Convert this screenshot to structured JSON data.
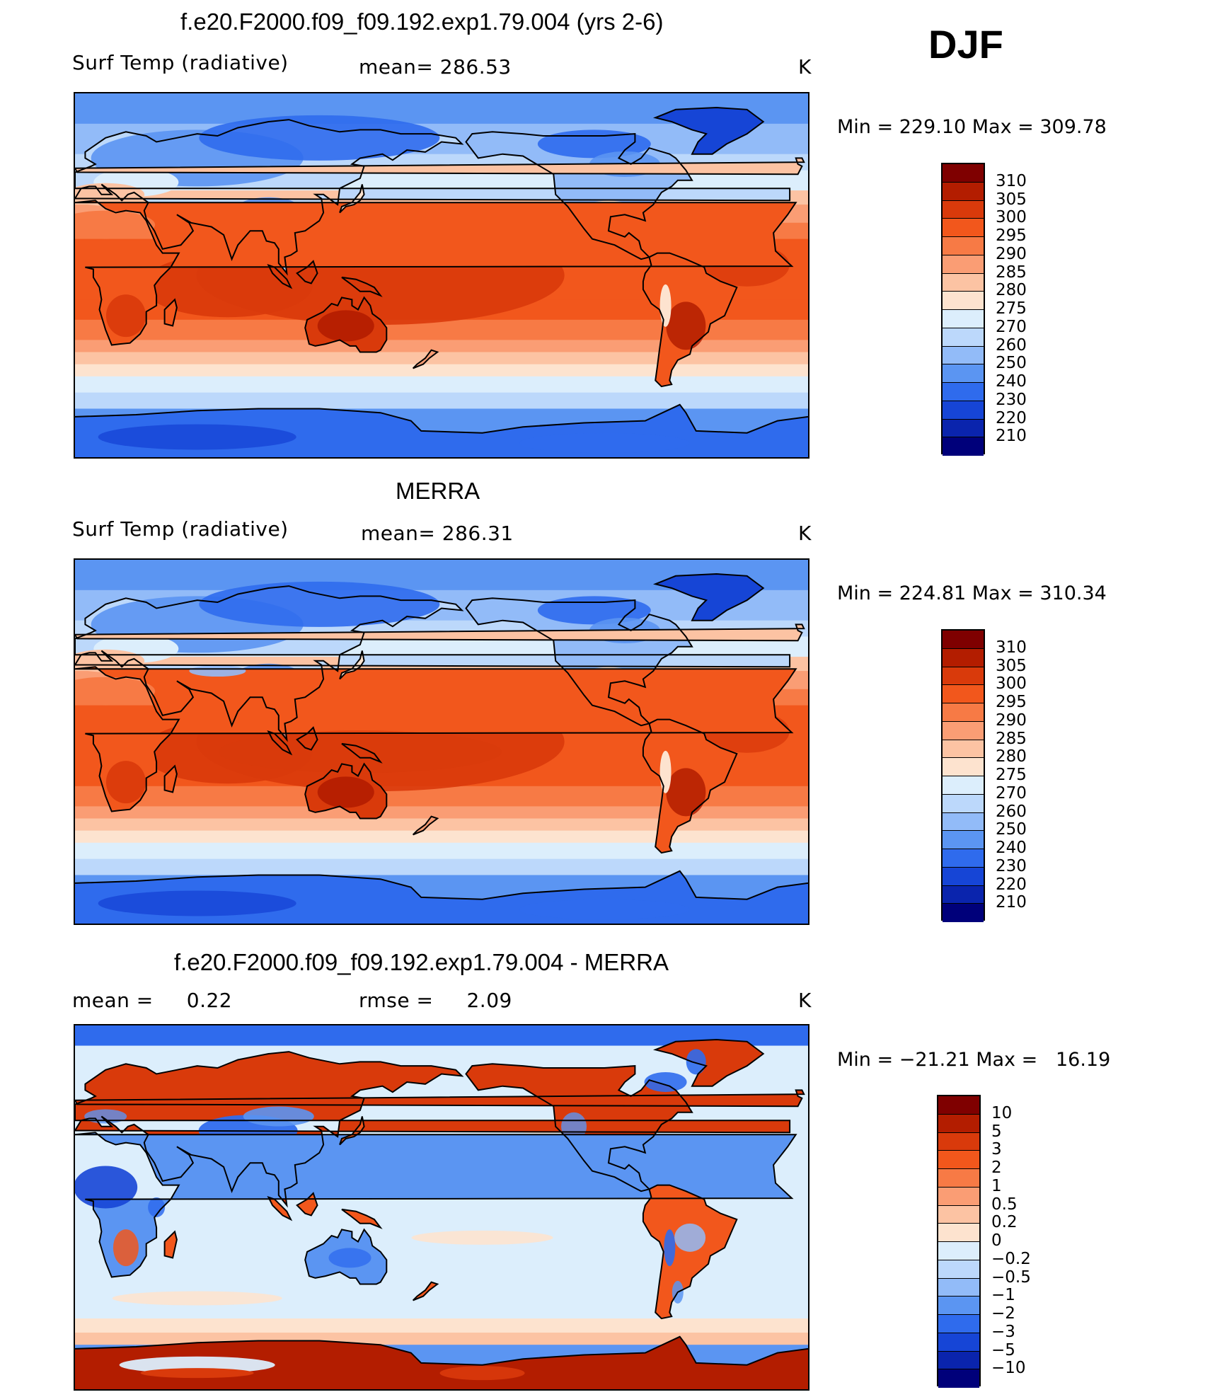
{
  "season": "DJF",
  "panels": [
    {
      "title": "f.e20.F2000.f09_f09.192.exp1.79.004 (yrs 2-6)",
      "left_text": "Surf Temp (radiative)",
      "mid_text": "mean= 286.53",
      "unit": "K",
      "minmax": "Min = 229.10 Max = 309.78",
      "mode": "abs"
    },
    {
      "title": "MERRA",
      "left_text": "Surf Temp (radiative)",
      "mid_text": "mean= 286.31",
      "unit": "K",
      "minmax": "Min = 224.81 Max = 310.34",
      "mode": "abs"
    },
    {
      "title": "f.e20.F2000.f09_f09.192.exp1.79.004 - MERRA",
      "left_text": "mean =     0.22",
      "mid_text": "rmse =     2.09",
      "unit": "K",
      "minmax": "Min = −21.21 Max =   16.19",
      "mode": "diff"
    }
  ],
  "colorbar_abs": {
    "labels": [
      "310",
      "305",
      "300",
      "295",
      "290",
      "285",
      "280",
      "275",
      "270",
      "260",
      "250",
      "240",
      "230",
      "220",
      "210"
    ],
    "colors": [
      "#7f0000",
      "#b31d00",
      "#d93a0b",
      "#f2571c",
      "#f77a45",
      "#fa9d74",
      "#fcc3a3",
      "#fde3cf",
      "#dceefc",
      "#bcd8fb",
      "#92bbf8",
      "#5b95f2",
      "#2f6bed",
      "#1645d6",
      "#0a24ad",
      "#00007a"
    ]
  },
  "colorbar_diff": {
    "labels": [
      "10",
      "5",
      "3",
      "2",
      "1",
      "0.5",
      "0.2",
      "0",
      "−0.2",
      "−0.5",
      "−1",
      "−2",
      "−3",
      "−5",
      "−10"
    ],
    "colors": [
      "#7f0000",
      "#b31d00",
      "#d93a0b",
      "#f2571c",
      "#f77a45",
      "#fa9d74",
      "#fcc3a3",
      "#fde3cf",
      "#dceefc",
      "#bcd8fb",
      "#92bbf8",
      "#5b95f2",
      "#2f6bed",
      "#1645d6",
      "#0a24ad",
      "#00007a"
    ]
  }
}
